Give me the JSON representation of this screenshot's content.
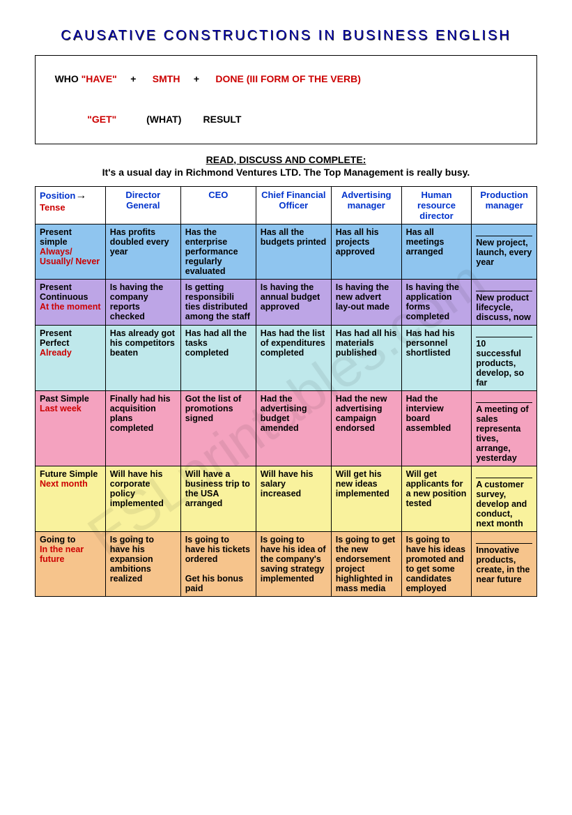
{
  "title": "CAUSATIVE CONSTRUCTIONS IN BUSINESS ENGLISH",
  "formula": {
    "line1_parts": {
      "who": "WHO",
      "have": " \"HAVE\"",
      "plus1": "     +      ",
      "smth": "SMTH",
      "plus2": "     +      ",
      "done": "DONE (III FORM OF THE VERB)"
    },
    "line2_parts": {
      "pad1": "            ",
      "get": "\"GET\"",
      "pad2": "           ",
      "what": "(WHAT)",
      "pad3": "        ",
      "result": "RESULT"
    }
  },
  "instruction": "READ, DISCUSS AND COMPLETE:",
  "subtitle": "It's a usual day in Richmond Ventures LTD. The Top Management is really busy.",
  "columns": {
    "c0a": "Position",
    "c0b": "Tense",
    "c1": "Director General",
    "c2": "CEO",
    "c3": "Chief Financial Officer",
    "c4": "Advertising manager",
    "c5": "Human resource director",
    "c6": "Production manager"
  },
  "rows": [
    {
      "bg": "row-ps",
      "tense_black": "Present simple",
      "tense_red": "Always/ Usually/ Never",
      "cells": [
        "Has profits doubled every year",
        "Has the enterprise performance regularly evaluated",
        "Has all the budgets printed",
        "Has all his projects approved",
        "Has all meetings arranged"
      ],
      "blank_hint": "New project, launch, every year"
    },
    {
      "bg": "row-pc",
      "tense_black": "Present Continuous",
      "tense_red": "At the moment",
      "cells": [
        "Is having the company reports checked",
        "Is getting responsibili ties distributed among the staff",
        "Is having the annual budget approved",
        "Is having the new advert lay-out made",
        "Is having the application forms completed"
      ],
      "blank_hint": "New product lifecycle, discuss, now"
    },
    {
      "bg": "row-pp",
      "tense_black": "Present Perfect",
      "tense_red": "Already",
      "cells": [
        "Has already got his competitors beaten",
        "Has had all the tasks completed",
        "Has had the list of expenditures completed",
        "Has had all his materials published",
        "Has had his personnel shortlisted"
      ],
      "blank_hint": "10 successful products, develop, so far"
    },
    {
      "bg": "row-past",
      "tense_black": "Past Simple",
      "tense_red": "Last week",
      "cells": [
        "Finally had his acquisition plans completed",
        "Got the list of promotions signed",
        "Had the advertising budget amended",
        "Had the new advertising campaign endorsed",
        "Had the interview board assembled"
      ],
      "blank_hint": "A meeting of sales representa tives, arrange, yesterday"
    },
    {
      "bg": "row-fut",
      "tense_black": "Future Simple",
      "tense_red": "Next month",
      "cells": [
        "Will have his corporate policy implemented",
        "Will have a business trip to the USA arranged",
        "Will have his salary increased",
        "Will get his new ideas implemented",
        "Will get applicants for a new position tested"
      ],
      "blank_hint": "A customer survey, develop and conduct, next month"
    },
    {
      "bg": "row-going",
      "tense_black": "Going to",
      "tense_red": "In the near future",
      "cells": [
        "Is going to have his expansion ambitions realized",
        "Is going to have his tickets ordered\n\nGet his bonus paid",
        "Is going to have his idea of the company's saving strategy implemented",
        "Is going to get the new endorsement project highlighted in mass media",
        "Is going to have his ideas promoted and to get some candidates employed"
      ],
      "blank_hint": "Innovative products, create, in the near future"
    }
  ],
  "watermark": "ESLprintables.com"
}
